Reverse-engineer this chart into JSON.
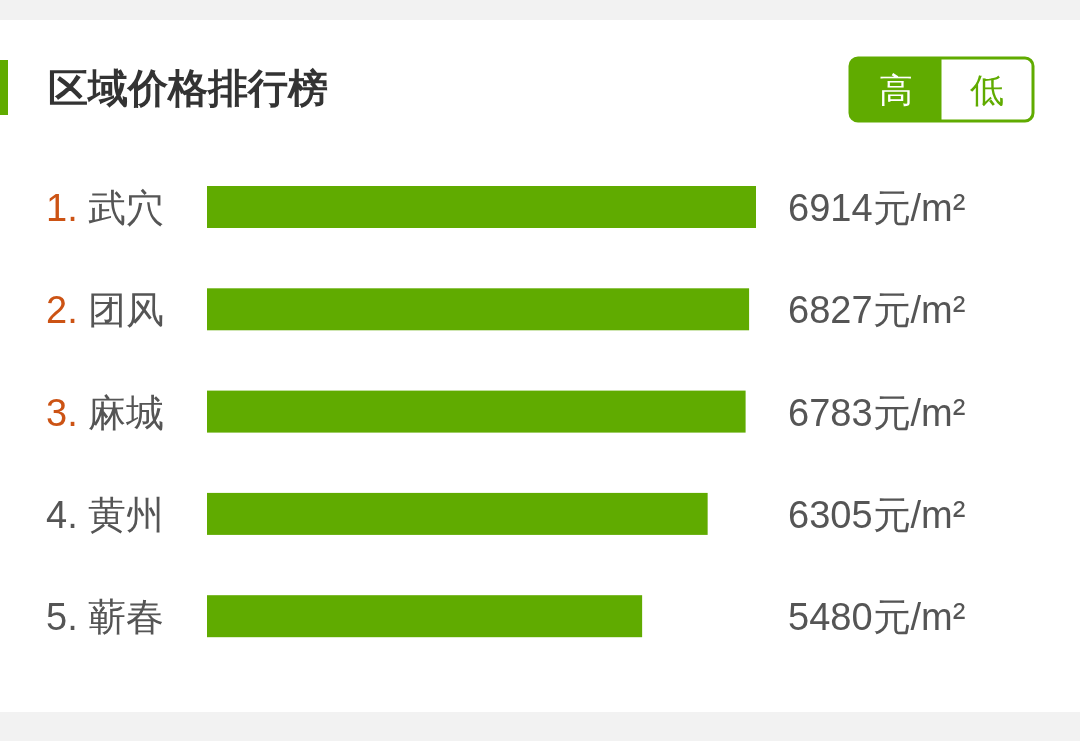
{
  "chart_data": {
    "type": "bar",
    "orientation": "horizontal",
    "title": "区域价格排行榜",
    "categories": [
      "1. 武穴",
      "2. 团风",
      "3. 麻城",
      "4. 黄州",
      "5. 蕲春"
    ],
    "values": [
      6914,
      6827,
      6783,
      6305,
      5480
    ],
    "value_labels": [
      "6914元/m²",
      "6827元/m²",
      "6783元/m²",
      "6305元/m²",
      "5480元/m²"
    ],
    "color": "#60ab00",
    "annotations": [
      "高",
      "低"
    ]
  }
}
